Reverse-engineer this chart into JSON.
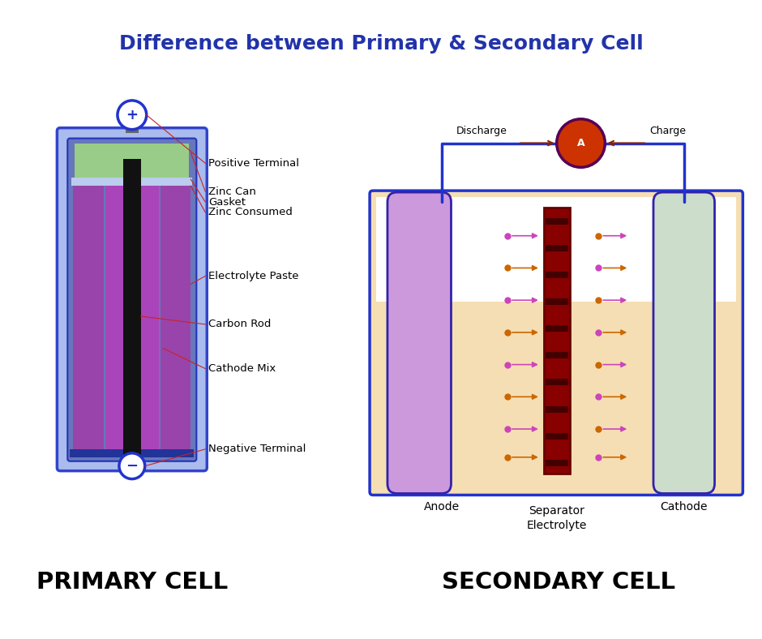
{
  "title": "Difference between Primary & Secondary Cell",
  "title_color": "#2233AA",
  "title_fontsize": 18,
  "bg_color": "#ffffff",
  "primary_label": "PRIMARY CELL",
  "secondary_label": "SECONDARY CELL",
  "label_fontsize": 21,
  "annotation_color": "#cc2222",
  "annotation_fontsize": 9.5
}
